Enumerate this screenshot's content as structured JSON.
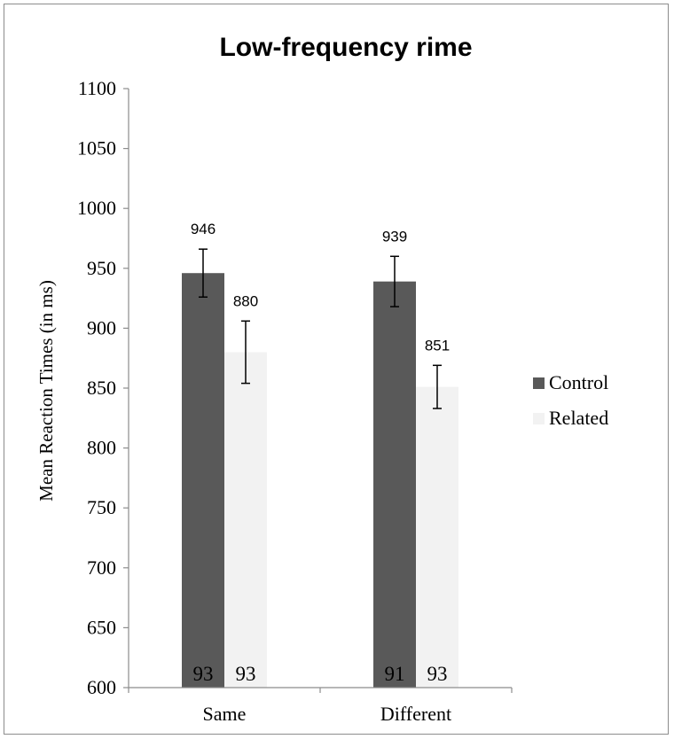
{
  "chart_data": {
    "type": "bar",
    "title": "Low-frequency rime",
    "xlabel": "",
    "ylabel": "Mean Reaction Times (in ms)",
    "ylim": [
      600,
      1100
    ],
    "yticks": [
      600,
      650,
      700,
      750,
      800,
      850,
      900,
      950,
      1000,
      1050,
      1100
    ],
    "grid": false,
    "legend_position": "right",
    "categories": [
      "Same",
      "Different"
    ],
    "series": [
      {
        "name": "Control",
        "color": "#595959",
        "values": [
          946,
          939
        ],
        "value_labels": [
          "946",
          "939"
        ],
        "error": [
          20,
          21
        ],
        "n_labels": [
          "93",
          "91"
        ]
      },
      {
        "name": "Related",
        "color": "#f2f2f2",
        "values": [
          880,
          851
        ],
        "value_labels": [
          "880",
          "851"
        ],
        "error": [
          26,
          18
        ],
        "n_labels": [
          "93",
          "93"
        ]
      }
    ]
  }
}
